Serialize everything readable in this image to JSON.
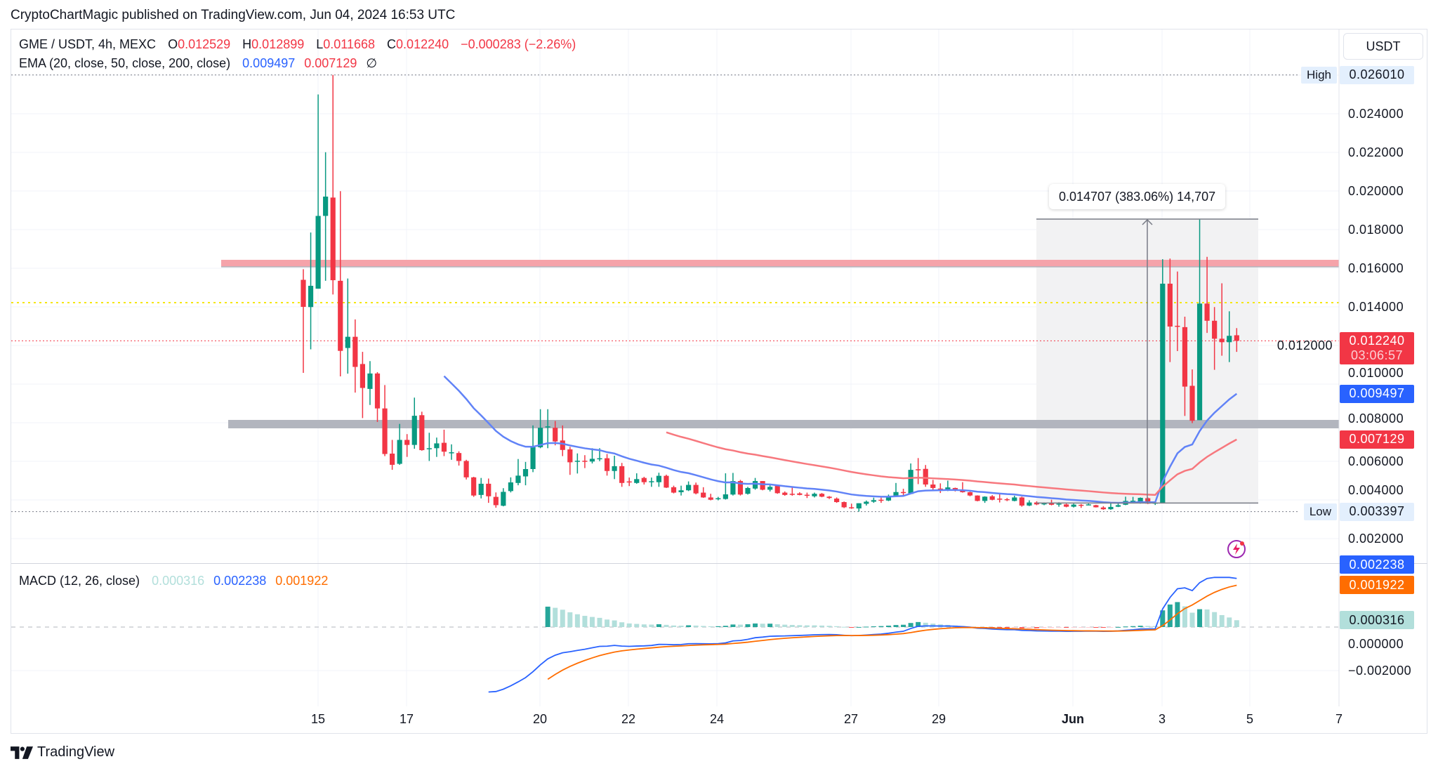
{
  "header": {
    "published": "CryptoChartMagic published on TradingView.com, Jun 04, 2024 16:53 UTC"
  },
  "legend": {
    "symbol": "GME / USDT, 4h, MEXC",
    "o_label": "O",
    "o": "0.012529",
    "h_label": "H",
    "h": "0.012899",
    "l_label": "L",
    "l": "0.011668",
    "c_label": "C",
    "c": "0.012240",
    "change": "−0.000283 (−2.26%)",
    "ema_title": "EMA (20, close, 50, close, 200, close)",
    "ema20": "0.009497",
    "ema50": "0.007129",
    "ema200": "∅"
  },
  "macd_legend": {
    "title": "MACD (12, 26, close)",
    "hist": "0.000316",
    "macd": "0.002238",
    "signal": "0.001922"
  },
  "currency_button": "USDT",
  "price_axis": {
    "ticks": [
      "0.024000",
      "0.022000",
      "0.020000",
      "0.018000",
      "0.016000",
      "0.014000",
      "0.012000",
      "0.010000",
      "0.008000",
      "0.006000",
      "0.004000",
      "0.002000"
    ]
  },
  "markers": {
    "high_label": "High",
    "high": "0.026010",
    "low_label": "Low",
    "low": "0.003397",
    "last": "0.012240",
    "countdown": "03:06:57",
    "ema20": "0.009497",
    "ema50": "0.007129"
  },
  "macd_axis": {
    "ticks": [
      "0.000000",
      "−0.002000"
    ],
    "macd": "0.002238",
    "signal": "0.001922",
    "hist": "0.000316"
  },
  "time_axis": [
    "15",
    "17",
    "20",
    "22",
    "24",
    "27",
    "29",
    "Jun",
    "3",
    "5",
    "7"
  ],
  "measure": {
    "label": "0.014707 (383.06%) 14,707",
    "from": 0.003839,
    "to": 0.018546
  },
  "drawings": {
    "resistance_zone": [
      0.016073,
      0.016436
    ],
    "support_zone": [
      0.007709,
      0.008145
    ],
    "level_line": 0.014218
  },
  "colors": {
    "up": "#089981",
    "down": "#f23645",
    "ema20": "#6183f7",
    "ema50": "#f7787e",
    "macd": "#2962ff",
    "signal": "#ff6d00",
    "hist_up_strong": "#26a69a",
    "hist_up_weak": "#b2dfdb",
    "hist_down_weak": "#ffcdd2",
    "hist_down_strong": "#ff5252",
    "resistance": "#f5a3aa",
    "support": "#b2b5be",
    "level": "#f5e60a"
  },
  "branding": "TradingView",
  "chart_data": {
    "type": "candlestick",
    "interval": "4h",
    "x_axis_ticks": [
      "15",
      "17",
      "20",
      "22",
      "24",
      "27",
      "29",
      "Jun",
      "3",
      "5",
      "7"
    ],
    "ylim": [
      0.001,
      0.027
    ],
    "high": 0.02601,
    "low": 0.003397,
    "candles_ohlc": [
      [
        0.0154,
        0.01595,
        0.01058,
        0.014
      ],
      [
        0.01399,
        0.01785,
        0.0118,
        0.01509
      ],
      [
        0.01494,
        0.025,
        0.01494,
        0.01871
      ],
      [
        0.01871,
        0.02201,
        0.01535,
        0.01971
      ],
      [
        0.01966,
        0.02601,
        0.01464,
        0.01538
      ],
      [
        0.01535,
        0.01999,
        0.0104,
        0.01172
      ],
      [
        0.01187,
        0.01547,
        0.01054,
        0.01245
      ],
      [
        0.01245,
        0.01335,
        0.00956,
        0.01089
      ],
      [
        0.01104,
        0.01167,
        0.00824,
        0.0098
      ],
      [
        0.00975,
        0.01119,
        0.00892,
        0.01055
      ],
      [
        0.01055,
        0.01062,
        0.00804,
        0.00874
      ],
      [
        0.00874,
        0.00995,
        0.00627,
        0.00638
      ],
      [
        0.0064,
        0.00711,
        0.00556,
        0.00582
      ],
      [
        0.00587,
        0.00794,
        0.00582,
        0.00711
      ],
      [
        0.00711,
        0.00741,
        0.00623,
        0.00685
      ],
      [
        0.00685,
        0.0093,
        0.00665,
        0.00836
      ],
      [
        0.00839,
        0.00857,
        0.00655,
        0.00658
      ],
      [
        0.00668,
        0.00748,
        0.00602,
        0.00668
      ],
      [
        0.00668,
        0.00723,
        0.00623,
        0.00693
      ],
      [
        0.00696,
        0.00764,
        0.00627,
        0.0065
      ],
      [
        0.00647,
        0.00688,
        0.00608,
        0.00647
      ],
      [
        0.00643,
        0.00652,
        0.00578,
        0.00602
      ],
      [
        0.00602,
        0.00608,
        0.00506,
        0.00517
      ],
      [
        0.00517,
        0.0052,
        0.00416,
        0.00423
      ],
      [
        0.00426,
        0.00514,
        0.00408,
        0.00484
      ],
      [
        0.00484,
        0.00511,
        0.00385,
        0.00419
      ],
      [
        0.00416,
        0.00439,
        0.0036,
        0.00373
      ],
      [
        0.0037,
        0.00461,
        0.00367,
        0.00442
      ],
      [
        0.00446,
        0.00517,
        0.00439,
        0.00491
      ],
      [
        0.00488,
        0.00612,
        0.00476,
        0.00526
      ],
      [
        0.00522,
        0.00597,
        0.00476,
        0.0056
      ],
      [
        0.0056,
        0.00786,
        0.00544,
        0.00673
      ],
      [
        0.00673,
        0.0087,
        0.00668,
        0.00774
      ],
      [
        0.00779,
        0.0087,
        0.00668,
        0.00781
      ],
      [
        0.00774,
        0.00809,
        0.00683,
        0.00703
      ],
      [
        0.00708,
        0.00786,
        0.00627,
        0.00659
      ],
      [
        0.00662,
        0.00675,
        0.0053,
        0.00595
      ],
      [
        0.00599,
        0.00641,
        0.00537,
        0.00603
      ],
      [
        0.00603,
        0.00632,
        0.00565,
        0.00599
      ],
      [
        0.00599,
        0.00668,
        0.00589,
        0.00613
      ],
      [
        0.00613,
        0.00668,
        0.00601,
        0.00616
      ],
      [
        0.00616,
        0.00638,
        0.00526,
        0.0055
      ],
      [
        0.0055,
        0.00629,
        0.00508,
        0.00575
      ],
      [
        0.00575,
        0.00592,
        0.00468,
        0.00488
      ],
      [
        0.00496,
        0.00516,
        0.00472,
        0.00492
      ],
      [
        0.00488,
        0.00538,
        0.00484,
        0.00508
      ],
      [
        0.00514,
        0.0052,
        0.0048,
        0.00492
      ],
      [
        0.00494,
        0.00516,
        0.00468,
        0.00497
      ],
      [
        0.00492,
        0.00541,
        0.00468,
        0.00525
      ],
      [
        0.00525,
        0.00531,
        0.00462,
        0.00464
      ],
      [
        0.00466,
        0.00474,
        0.00434,
        0.00438
      ],
      [
        0.0044,
        0.00474,
        0.00423,
        0.0045
      ],
      [
        0.0045,
        0.00496,
        0.00446,
        0.00478
      ],
      [
        0.00478,
        0.0049,
        0.00429,
        0.00434
      ],
      [
        0.00438,
        0.00466,
        0.00411,
        0.00413
      ],
      [
        0.00413,
        0.00432,
        0.00398,
        0.00401
      ],
      [
        0.00407,
        0.00416,
        0.00398,
        0.00409
      ],
      [
        0.00405,
        0.00538,
        0.00402,
        0.00429
      ],
      [
        0.00428,
        0.0054,
        0.00423,
        0.00498
      ],
      [
        0.00498,
        0.00504,
        0.00423,
        0.00428
      ],
      [
        0.00432,
        0.00468,
        0.00428,
        0.00462
      ],
      [
        0.00459,
        0.00514,
        0.00453,
        0.00498
      ],
      [
        0.00498,
        0.00498,
        0.0045,
        0.00453
      ],
      [
        0.00453,
        0.00476,
        0.00444,
        0.00468
      ],
      [
        0.00474,
        0.00478,
        0.00432,
        0.00435
      ],
      [
        0.00438,
        0.00444,
        0.00422,
        0.00426
      ],
      [
        0.00432,
        0.00464,
        0.00422,
        0.00431
      ],
      [
        0.00434,
        0.0044,
        0.00424,
        0.00426
      ],
      [
        0.00427,
        0.00438,
        0.0041,
        0.00425
      ],
      [
        0.00419,
        0.00438,
        0.00413,
        0.00432
      ],
      [
        0.00432,
        0.00436,
        0.00414,
        0.00417
      ],
      [
        0.00417,
        0.0042,
        0.00405,
        0.0041
      ],
      [
        0.00407,
        0.00413,
        0.00385,
        0.00389
      ],
      [
        0.00389,
        0.00392,
        0.00358,
        0.00362
      ],
      [
        0.00362,
        0.00381,
        0.00354,
        0.00359
      ],
      [
        0.00356,
        0.00383,
        0.003397,
        0.00383
      ],
      [
        0.0038,
        0.00397,
        0.00371,
        0.00391
      ],
      [
        0.00391,
        0.00412,
        0.00385,
        0.00399
      ],
      [
        0.00401,
        0.00412,
        0.00385,
        0.00397
      ],
      [
        0.00397,
        0.00428,
        0.00394,
        0.00417
      ],
      [
        0.00422,
        0.00488,
        0.00419,
        0.00441
      ],
      [
        0.00441,
        0.00458,
        0.00424,
        0.00436
      ],
      [
        0.00431,
        0.00589,
        0.00429,
        0.00556
      ],
      [
        0.00559,
        0.00617,
        0.00482,
        0.00555
      ],
      [
        0.00561,
        0.00581,
        0.00468,
        0.0048
      ],
      [
        0.0048,
        0.00504,
        0.00453,
        0.00462
      ],
      [
        0.00459,
        0.00486,
        0.00436,
        0.00455
      ],
      [
        0.00453,
        0.005,
        0.00446,
        0.00465
      ],
      [
        0.00462,
        0.00464,
        0.00444,
        0.0045
      ],
      [
        0.0045,
        0.00492,
        0.00438,
        0.0044
      ],
      [
        0.0044,
        0.00443,
        0.00419,
        0.00423
      ],
      [
        0.00423,
        0.00424,
        0.00393,
        0.00395
      ],
      [
        0.00395,
        0.00419,
        0.00385,
        0.00417
      ],
      [
        0.00419,
        0.00425,
        0.00398,
        0.00401
      ],
      [
        0.00407,
        0.00435,
        0.00387,
        0.00403
      ],
      [
        0.00404,
        0.0041,
        0.00394,
        0.00401
      ],
      [
        0.00395,
        0.00422,
        0.00393,
        0.00413
      ],
      [
        0.00413,
        0.00417,
        0.00365,
        0.00371
      ],
      [
        0.00371,
        0.00398,
        0.00368,
        0.00387
      ],
      [
        0.00387,
        0.00393,
        0.00373,
        0.00377
      ],
      [
        0.00377,
        0.00387,
        0.00373,
        0.00383
      ],
      [
        0.00385,
        0.00401,
        0.00372,
        0.00375
      ],
      [
        0.00379,
        0.00388,
        0.00365,
        0.00381
      ],
      [
        0.00377,
        0.00381,
        0.00362,
        0.00365
      ],
      [
        0.00365,
        0.00381,
        0.00361,
        0.00376
      ],
      [
        0.00375,
        0.00379,
        0.00359,
        0.00373
      ],
      [
        0.00376,
        0.00381,
        0.00373,
        0.00377
      ],
      [
        0.00373,
        0.00375,
        0.00361,
        0.00362
      ],
      [
        0.00361,
        0.00368,
        0.00349,
        0.00352
      ],
      [
        0.00352,
        0.00385,
        0.00349,
        0.00364
      ],
      [
        0.00365,
        0.00385,
        0.00363,
        0.00373
      ],
      [
        0.00375,
        0.00417,
        0.00373,
        0.00395
      ],
      [
        0.00393,
        0.00416,
        0.00383,
        0.00396
      ],
      [
        0.0039,
        0.00413,
        0.00381,
        0.00411
      ],
      [
        0.00409,
        0.00413,
        0.00379,
        0.00381
      ],
      [
        0.00384,
        0.00391,
        0.00374,
        0.00386
      ],
      [
        0.003839,
        0.01647,
        0.003839,
        0.0152
      ],
      [
        0.0152,
        0.0165,
        0.01114,
        0.01298
      ],
      [
        0.01302,
        0.01583,
        0.01171,
        0.01299
      ],
      [
        0.01295,
        0.01349,
        0.00835,
        0.00987
      ],
      [
        0.00991,
        0.01076,
        0.00798,
        0.0081
      ],
      [
        0.00813,
        0.018546,
        0.00813,
        0.01417
      ],
      [
        0.01417,
        0.01659,
        0.01265,
        0.01328
      ],
      [
        0.01328,
        0.01399,
        0.01074,
        0.01235
      ],
      [
        0.01235,
        0.01522,
        0.01147,
        0.01217
      ],
      [
        0.01217,
        0.01377,
        0.01114,
        0.0125
      ],
      [
        0.012529,
        0.012899,
        0.011668,
        0.01224
      ]
    ],
    "indicators": {
      "ema_periods": [
        20,
        50
      ],
      "macd": {
        "fast": 12,
        "slow": 26,
        "signal": 9
      }
    },
    "macd_ylim": [
      -0.0035,
      0.003
    ]
  }
}
